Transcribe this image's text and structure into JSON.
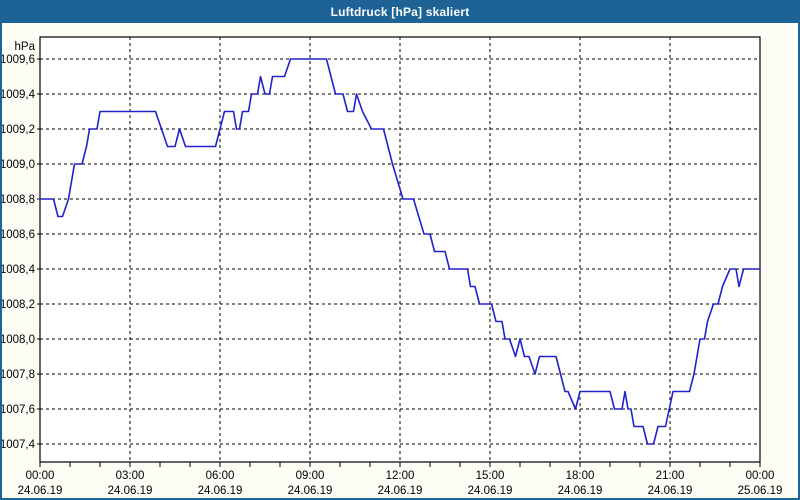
{
  "window": {
    "title": "Luftdruck [hPa] skaliert",
    "title_bar_color": "#1e6396",
    "border_color": "#1e6396",
    "background_color": "#fdfdf6"
  },
  "chart_data": {
    "type": "line",
    "title": "Luftdruck [hPa] skaliert",
    "grid": {
      "show": true,
      "style": "dashed",
      "color": "#000000"
    },
    "plot_background": "#ffffff",
    "y_axis": {
      "unit_label": "hPa",
      "max_label_value": 1009.6,
      "min_label_value": 1007.4,
      "tick_step": 0.2,
      "tick_labels": [
        "1009,6",
        "1009,4",
        "1009,2",
        "1009,0",
        "1008,8",
        "1008,6",
        "1008,4",
        "1008,2",
        "1008,0",
        "1007,8",
        "1007,6",
        "1007,4"
      ]
    },
    "x_axis": {
      "range_hours": [
        0,
        24
      ],
      "minor_tick_hours": 1,
      "major_tick_hours": 3,
      "tick_labels": [
        {
          "time": "00:00",
          "date": "24.06.19"
        },
        {
          "time": "03:00",
          "date": "24.06.19"
        },
        {
          "time": "06:00",
          "date": "24.06.19"
        },
        {
          "time": "09:00",
          "date": "24.06.19"
        },
        {
          "time": "12:00",
          "date": "24.06.19"
        },
        {
          "time": "15:00",
          "date": "24.06.19"
        },
        {
          "time": "18:00",
          "date": "24.06.19"
        },
        {
          "time": "21:00",
          "date": "24.06.19"
        },
        {
          "time": "00:00",
          "date": "25.06.19"
        }
      ]
    },
    "series": [
      {
        "name": "Luftdruck",
        "color": "#2222cc",
        "points": [
          [
            0.0,
            1008.8
          ],
          [
            0.45,
            1008.8
          ],
          [
            0.6,
            1008.7
          ],
          [
            0.75,
            1008.7
          ],
          [
            0.95,
            1008.8
          ],
          [
            1.15,
            1009.0
          ],
          [
            1.4,
            1009.0
          ],
          [
            1.55,
            1009.1
          ],
          [
            1.65,
            1009.2
          ],
          [
            1.9,
            1009.2
          ],
          [
            2.0,
            1009.3
          ],
          [
            3.85,
            1009.3
          ],
          [
            4.25,
            1009.1
          ],
          [
            4.5,
            1009.1
          ],
          [
            4.65,
            1009.2
          ],
          [
            4.85,
            1009.1
          ],
          [
            5.85,
            1009.1
          ],
          [
            6.0,
            1009.2
          ],
          [
            6.15,
            1009.3
          ],
          [
            6.45,
            1009.3
          ],
          [
            6.55,
            1009.2
          ],
          [
            6.65,
            1009.2
          ],
          [
            6.75,
            1009.3
          ],
          [
            6.95,
            1009.3
          ],
          [
            7.05,
            1009.4
          ],
          [
            7.25,
            1009.4
          ],
          [
            7.35,
            1009.5
          ],
          [
            7.5,
            1009.4
          ],
          [
            7.65,
            1009.4
          ],
          [
            7.75,
            1009.5
          ],
          [
            8.15,
            1009.5
          ],
          [
            8.35,
            1009.6
          ],
          [
            9.55,
            1009.6
          ],
          [
            9.85,
            1009.4
          ],
          [
            10.1,
            1009.4
          ],
          [
            10.25,
            1009.3
          ],
          [
            10.45,
            1009.3
          ],
          [
            10.55,
            1009.4
          ],
          [
            10.75,
            1009.3
          ],
          [
            11.05,
            1009.2
          ],
          [
            11.45,
            1009.2
          ],
          [
            11.75,
            1009.0
          ],
          [
            12.1,
            1008.8
          ],
          [
            12.45,
            1008.8
          ],
          [
            12.8,
            1008.6
          ],
          [
            13.0,
            1008.6
          ],
          [
            13.15,
            1008.5
          ],
          [
            13.5,
            1008.5
          ],
          [
            13.65,
            1008.4
          ],
          [
            14.25,
            1008.4
          ],
          [
            14.35,
            1008.3
          ],
          [
            14.5,
            1008.3
          ],
          [
            14.65,
            1008.2
          ],
          [
            15.05,
            1008.2
          ],
          [
            15.2,
            1008.1
          ],
          [
            15.4,
            1008.1
          ],
          [
            15.5,
            1008.0
          ],
          [
            15.65,
            1008.0
          ],
          [
            15.85,
            1007.9
          ],
          [
            16.0,
            1008.0
          ],
          [
            16.15,
            1007.9
          ],
          [
            16.3,
            1007.9
          ],
          [
            16.5,
            1007.8
          ],
          [
            16.65,
            1007.9
          ],
          [
            17.2,
            1007.9
          ],
          [
            17.35,
            1007.8
          ],
          [
            17.5,
            1007.7
          ],
          [
            17.6,
            1007.7
          ],
          [
            17.85,
            1007.6
          ],
          [
            18.0,
            1007.7
          ],
          [
            19.0,
            1007.7
          ],
          [
            19.15,
            1007.6
          ],
          [
            19.4,
            1007.6
          ],
          [
            19.5,
            1007.7
          ],
          [
            19.6,
            1007.6
          ],
          [
            19.7,
            1007.6
          ],
          [
            19.8,
            1007.5
          ],
          [
            20.1,
            1007.5
          ],
          [
            20.25,
            1007.4
          ],
          [
            20.45,
            1007.4
          ],
          [
            20.6,
            1007.5
          ],
          [
            20.85,
            1007.5
          ],
          [
            21.1,
            1007.7
          ],
          [
            21.65,
            1007.7
          ],
          [
            21.8,
            1007.8
          ],
          [
            21.9,
            1007.9
          ],
          [
            22.0,
            1008.0
          ],
          [
            22.15,
            1008.0
          ],
          [
            22.25,
            1008.1
          ],
          [
            22.45,
            1008.2
          ],
          [
            22.6,
            1008.2
          ],
          [
            22.75,
            1008.3
          ],
          [
            23.0,
            1008.4
          ],
          [
            23.2,
            1008.4
          ],
          [
            23.3,
            1008.3
          ],
          [
            23.45,
            1008.4
          ],
          [
            24.0,
            1008.4
          ]
        ]
      }
    ]
  }
}
